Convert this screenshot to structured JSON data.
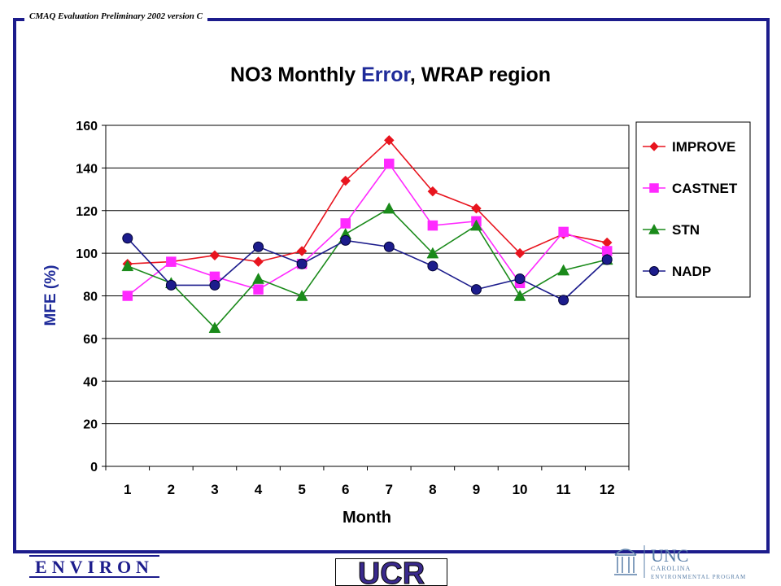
{
  "header": {
    "label": "CMAQ Evaluation Preliminary 2002 version C"
  },
  "chart_data": {
    "type": "line",
    "title_parts": [
      {
        "text": "NO3 Monthly ",
        "color": "#000000"
      },
      {
        "text": "Error",
        "color": "#1f2b9a"
      },
      {
        "text": ", WRAP region",
        "color": "#000000"
      }
    ],
    "xlabel": "Month",
    "ylabel": "MFE (%)",
    "ylim": [
      0,
      160
    ],
    "yticks": [
      0,
      20,
      40,
      60,
      80,
      100,
      120,
      140,
      160
    ],
    "categories": [
      "1",
      "2",
      "3",
      "4",
      "5",
      "6",
      "7",
      "8",
      "9",
      "10",
      "11",
      "12"
    ],
    "grid": "horizontal",
    "legend_position": "right",
    "series": [
      {
        "name": "IMPROVE",
        "color": "#e8141e",
        "marker": "diamond",
        "values": [
          95,
          96,
          99,
          96,
          101,
          134,
          153,
          129,
          121,
          100,
          109,
          105
        ]
      },
      {
        "name": "CASTNET",
        "color": "#ff29ff",
        "marker": "square",
        "values": [
          80,
          96,
          89,
          83,
          95,
          114,
          142,
          113,
          115,
          86,
          110,
          101
        ]
      },
      {
        "name": "STN",
        "color": "#1a8a1a",
        "marker": "triangle",
        "values": [
          94,
          86,
          65,
          88,
          80,
          109,
          121,
          100,
          113,
          80,
          92,
          97
        ]
      },
      {
        "name": "NADP",
        "color": "#1c1c8c",
        "marker": "circle",
        "values": [
          107,
          85,
          85,
          103,
          95,
          106,
          103,
          94,
          83,
          88,
          78,
          97
        ]
      }
    ]
  },
  "logos": {
    "environ": {
      "text": "ENVIRON"
    },
    "ucr": {
      "text": "UCR"
    },
    "unc": {
      "main": "UNC",
      "line1": "CAROLINA",
      "line2": "ENVIRONMENTAL PROGRAM"
    }
  }
}
